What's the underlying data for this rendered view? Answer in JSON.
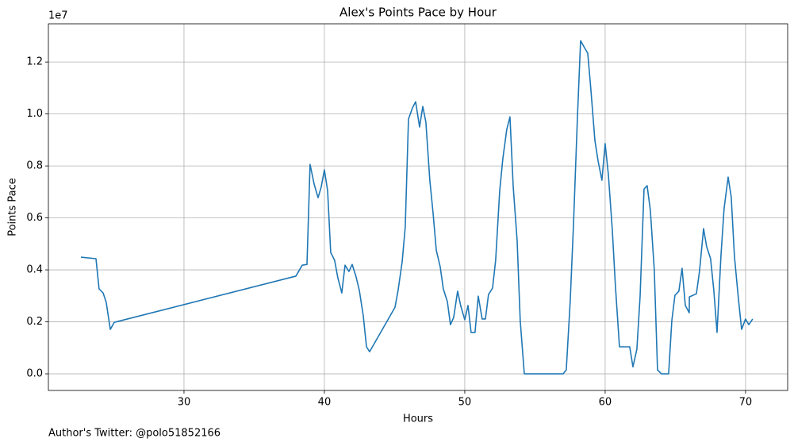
{
  "chart_data": {
    "type": "line",
    "title": "Alex's Points Pace by Hour",
    "x_label": "Hours",
    "y_label": "Points Pace",
    "y_scale_label": "1e7",
    "footer": "Author's Twitter: @polo51852166",
    "color": "#1f77b4",
    "grid": true,
    "xlim": [
      20.34,
      73.0
    ],
    "xticks": [
      30,
      40,
      50,
      60,
      70
    ],
    "ylim": [
      -0.064,
      1.347
    ],
    "yticks": [
      {
        "value": 0,
        "label": "0.0"
      },
      0.2,
      0.4,
      0.6,
      0.8,
      {
        "value": 1,
        "label": "1.0"
      },
      1.2
    ],
    "x": [
      22.66,
      23.73,
      23.95,
      24.24,
      24.46,
      24.75,
      25.03,
      37.97,
      38.42,
      38.76,
      38.98,
      39.27,
      39.55,
      39.77,
      40.0,
      40.23,
      40.45,
      40.73,
      40.96,
      41.24,
      41.47,
      41.75,
      41.98,
      42.26,
      42.49,
      42.77,
      43.0,
      43.22,
      45.03,
      45.25,
      45.54,
      45.76,
      45.99,
      46.27,
      46.5,
      46.78,
      47.01,
      47.23,
      47.51,
      47.74,
      47.97,
      48.25,
      48.47,
      48.76,
      48.98,
      49.21,
      49.49,
      49.72,
      50.0,
      50.23,
      50.45,
      50.73,
      50.96,
      51.24,
      51.47,
      51.69,
      51.98,
      52.2,
      52.49,
      52.71,
      52.99,
      53.22,
      53.45,
      53.73,
      53.95,
      54.24,
      57.01,
      57.23,
      57.51,
      57.74,
      58.02,
      58.25,
      58.53,
      58.76,
      58.98,
      59.27,
      59.49,
      59.77,
      60.0,
      60.23,
      60.51,
      60.73,
      61.02,
      61.24,
      61.53,
      61.75,
      61.98,
      62.26,
      62.49,
      62.77,
      62.99,
      63.22,
      63.5,
      63.73,
      64.01,
      64.24,
      64.52,
      64.75,
      64.97,
      65.25,
      65.48,
      65.71,
      65.99,
      66.0,
      66.5,
      66.72,
      67.01,
      67.23,
      67.51,
      67.74,
      67.97,
      68.25,
      68.47,
      68.76,
      68.98,
      69.21,
      69.49,
      69.72,
      70.0,
      70.23,
      70.51
    ],
    "values": [
      0.449,
      0.443,
      0.327,
      0.311,
      0.275,
      0.171,
      0.198,
      0.376,
      0.418,
      0.421,
      0.806,
      0.73,
      0.678,
      0.718,
      0.785,
      0.705,
      0.467,
      0.437,
      0.369,
      0.311,
      0.418,
      0.394,
      0.421,
      0.373,
      0.321,
      0.223,
      0.104,
      0.085,
      0.256,
      0.321,
      0.431,
      0.565,
      0.98,
      1.023,
      1.047,
      0.95,
      1.029,
      0.968,
      0.745,
      0.62,
      0.476,
      0.412,
      0.327,
      0.278,
      0.189,
      0.217,
      0.318,
      0.26,
      0.208,
      0.263,
      0.159,
      0.159,
      0.299,
      0.211,
      0.211,
      0.305,
      0.33,
      0.437,
      0.705,
      0.827,
      0.94,
      0.989,
      0.721,
      0.513,
      0.205,
      0,
      0,
      0.015,
      0.278,
      0.568,
      0.98,
      1.282,
      1.255,
      1.234,
      1.096,
      0.898,
      0.821,
      0.745,
      0.886,
      0.766,
      0.553,
      0.339,
      0.104,
      0.104,
      0.104,
      0.104,
      0.027,
      0.095,
      0.299,
      0.711,
      0.724,
      0.629,
      0.4,
      0.015,
      0,
      0,
      0,
      0.205,
      0.302,
      0.318,
      0.406,
      0.263,
      0.235,
      0.296,
      0.308,
      0.394,
      0.559,
      0.489,
      0.443,
      0.321,
      0.159,
      0.455,
      0.635,
      0.757,
      0.681,
      0.452,
      0.29,
      0.171,
      0.211,
      0.189,
      0.211
    ]
  }
}
